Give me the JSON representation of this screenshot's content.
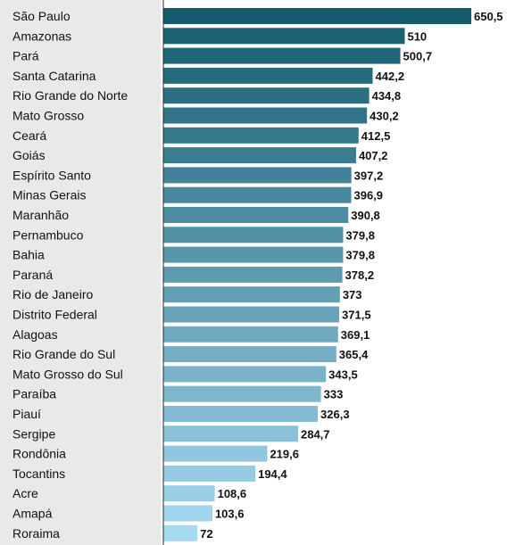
{
  "chart_data": {
    "type": "bar",
    "orientation": "horizontal",
    "categories": [
      "São Paulo",
      "Amazonas",
      "Pará",
      "Santa Catarina",
      "Rio Grande do Norte",
      "Mato Grosso",
      "Ceará",
      "Goiás",
      "Espírito Santo",
      "Minas Gerais",
      "Maranhão",
      "Pernambuco",
      "Bahia",
      "Paraná",
      "Rio de Janeiro",
      "Distrito Federal",
      "Alagoas",
      "Rio Grande do Sul",
      "Mato Grosso do Sul",
      "Paraíba",
      "Piauí",
      "Sergipe",
      "Rondônia",
      "Tocantins",
      "Acre",
      "Amapá",
      "Roraima"
    ],
    "values": [
      650.5,
      510,
      500.7,
      442.2,
      434.8,
      430.2,
      412.5,
      407.2,
      397.2,
      396.9,
      390.8,
      379.8,
      379.8,
      378.2,
      373,
      371.5,
      369.1,
      365.4,
      343.5,
      333,
      326.3,
      284.7,
      219.6,
      194.4,
      108.6,
      103.6,
      72
    ],
    "value_labels": [
      "650,5",
      "510",
      "500,7",
      "442,2",
      "434,8",
      "430,2",
      "412,5",
      "407,2",
      "397,2",
      "396,9",
      "390,8",
      "379,8",
      "379,8",
      "378,2",
      "373",
      "371,5",
      "369,1",
      "365,4",
      "343,5",
      "333",
      "326,3",
      "284,7",
      "219,6",
      "194,4",
      "108,6",
      "103,6",
      "72"
    ],
    "title": "",
    "xlabel": "",
    "ylabel": "",
    "xlim": [
      0,
      650.5
    ],
    "grid": false,
    "legend": "none",
    "colors": {
      "dark": "#155b6e",
      "light": "#a6d9f2",
      "label_panel": "#e9e9e9",
      "axis_line": "#2a2a2a"
    }
  }
}
